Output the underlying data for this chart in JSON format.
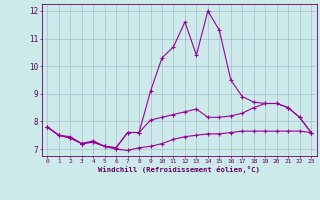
{
  "xlabel": "Windchill (Refroidissement éolien,°C)",
  "hours": [
    0,
    1,
    2,
    3,
    4,
    5,
    6,
    7,
    8,
    9,
    10,
    11,
    12,
    13,
    14,
    15,
    16,
    17,
    18,
    19,
    20,
    21,
    22,
    23
  ],
  "line1": [
    7.8,
    7.5,
    7.4,
    7.2,
    7.25,
    7.1,
    7.05,
    7.6,
    7.6,
    8.05,
    8.15,
    8.25,
    8.35,
    8.45,
    8.15,
    8.15,
    8.2,
    8.3,
    8.5,
    8.65,
    8.65,
    8.5,
    8.15,
    7.6
  ],
  "line2": [
    7.8,
    7.5,
    7.4,
    7.2,
    7.25,
    7.1,
    7.05,
    7.6,
    7.6,
    9.1,
    10.3,
    10.7,
    11.6,
    10.4,
    12.0,
    11.3,
    9.5,
    8.9,
    8.7,
    8.65,
    8.65,
    8.5,
    8.15,
    7.6
  ],
  "line3": [
    7.8,
    7.5,
    7.45,
    7.2,
    7.3,
    7.1,
    7.0,
    6.95,
    7.05,
    7.1,
    7.2,
    7.35,
    7.45,
    7.5,
    7.55,
    7.55,
    7.6,
    7.65,
    7.65,
    7.65,
    7.65,
    7.65,
    7.65,
    7.6
  ],
  "line_color": "#990099",
  "bg_color": "#cceaea",
  "grid_color": "#aabbcc",
  "text_color": "#660066",
  "ylim": [
    6.75,
    12.25
  ],
  "yticks": [
    7,
    8,
    9,
    10,
    11,
    12
  ],
  "xlim": [
    -0.5,
    23.5
  ],
  "marker": "+"
}
